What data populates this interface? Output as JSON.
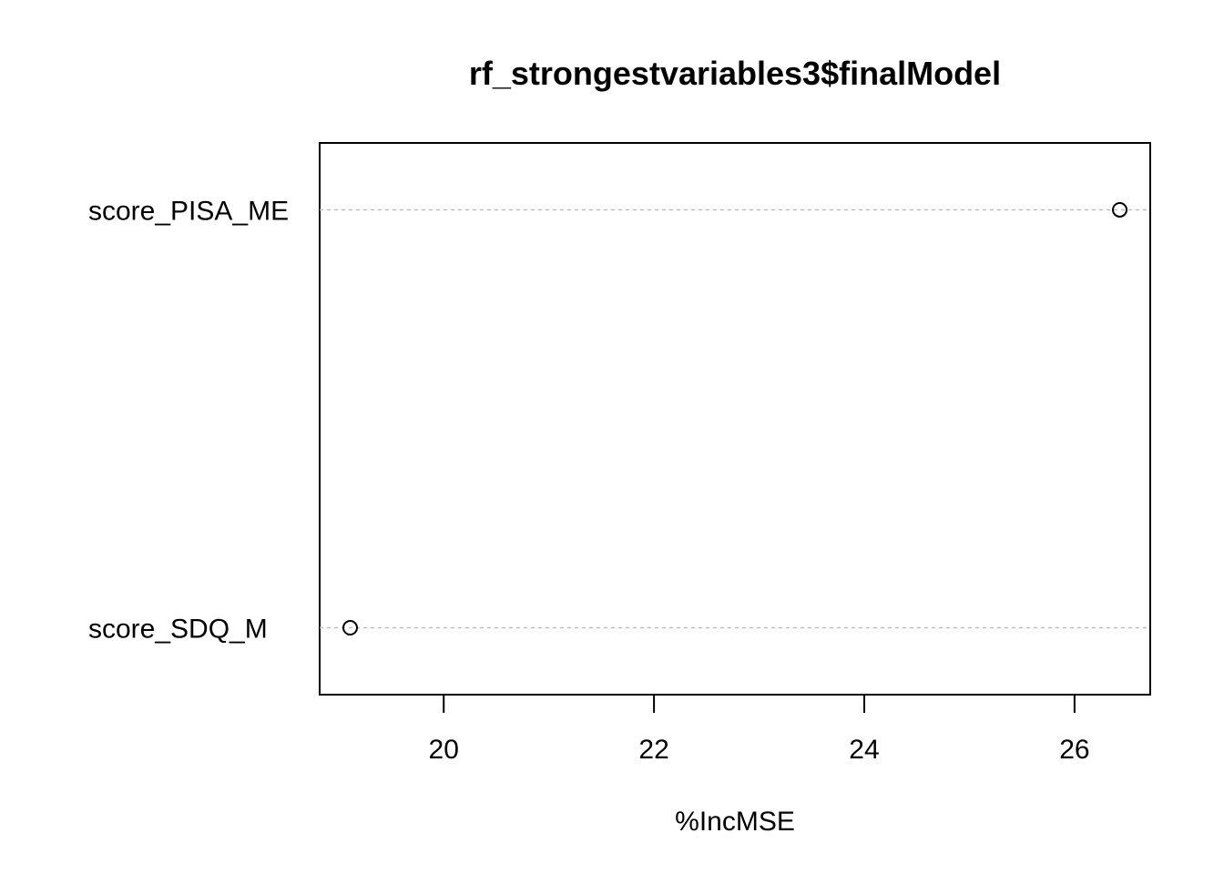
{
  "chart_data": {
    "type": "scatter",
    "subtype": "dotchart",
    "title": "rf_strongestvariables3$finalModel",
    "xlabel": "%IncMSE",
    "ylabel": "",
    "xlim": [
      18.82,
      26.72
    ],
    "xticks": [
      "20",
      "22",
      "24",
      "26"
    ],
    "grid": "dashed horizontal guide lines",
    "legend": "none",
    "categories": [
      "score_SDQ_M",
      "score_PISA_ME"
    ],
    "values": [
      19.11,
      26.43
    ],
    "colors": {
      "axis": "#000000",
      "guide": "#bebebe",
      "point": "#000000"
    }
  }
}
